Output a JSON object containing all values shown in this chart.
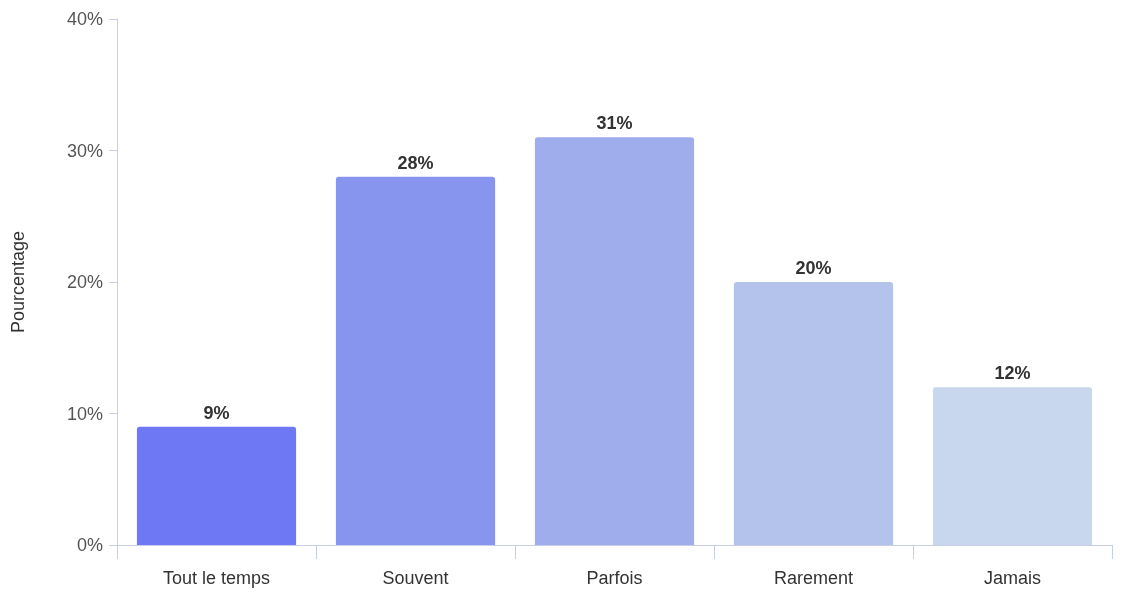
{
  "chart_data": {
    "type": "bar",
    "ylabel": "Pourcentage",
    "categories": [
      "Tout le temps",
      "Souvent",
      "Parfois",
      "Rarement",
      "Jamais"
    ],
    "values": [
      9,
      28,
      31,
      20,
      12
    ],
    "colors": [
      "#6e78f5",
      "#8795ef",
      "#9fadec",
      "#b3c3ec",
      "#c8d7ed"
    ],
    "value_labels": [
      "9%",
      "28%",
      "31%",
      "20%",
      "12%"
    ],
    "ylim": [
      0,
      40
    ],
    "yticks": [
      {
        "value": 0,
        "label": "0%"
      },
      {
        "value": 10,
        "label": "10%"
      },
      {
        "value": 20,
        "label": "20%"
      },
      {
        "value": 30,
        "label": "30%"
      },
      {
        "value": 40,
        "label": "40%"
      }
    ],
    "grid": false
  }
}
